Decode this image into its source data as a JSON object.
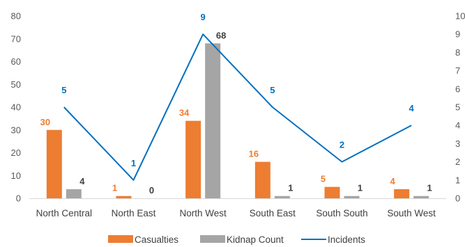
{
  "chart_data": {
    "type": "bar",
    "categories": [
      "North Central",
      "North East",
      "North West",
      "South East",
      "South South",
      "South West"
    ],
    "series": [
      {
        "name": "Casualties",
        "type": "bar",
        "axis": "left",
        "color": "#ED7D31",
        "label_color": "#ED7D31",
        "values": [
          30,
          1,
          34,
          16,
          5,
          4
        ]
      },
      {
        "name": "Kidnap Count",
        "type": "bar",
        "axis": "left",
        "color": "#A5A5A5",
        "label_color": "#404040",
        "values": [
          4,
          0,
          68,
          1,
          1,
          1
        ]
      },
      {
        "name": "Incidents",
        "type": "line",
        "axis": "right",
        "color": "#0070C0",
        "label_color": "#0070C0",
        "values": [
          5,
          1,
          9,
          5,
          2,
          4
        ]
      }
    ],
    "left_axis": {
      "ylim": [
        0,
        80
      ],
      "ticks": [
        "0",
        "10",
        "20",
        "30",
        "40",
        "50",
        "60",
        "70",
        "80"
      ]
    },
    "right_axis": {
      "ylim": [
        0,
        10
      ],
      "ticks": [
        "0",
        "1",
        "2",
        "3",
        "4",
        "5",
        "6",
        "7",
        "8",
        "9",
        "10"
      ]
    },
    "legend": {
      "position": "bottom",
      "items": [
        "Casualties",
        "Kidnap Count",
        "Incidents"
      ]
    },
    "grid": false
  }
}
